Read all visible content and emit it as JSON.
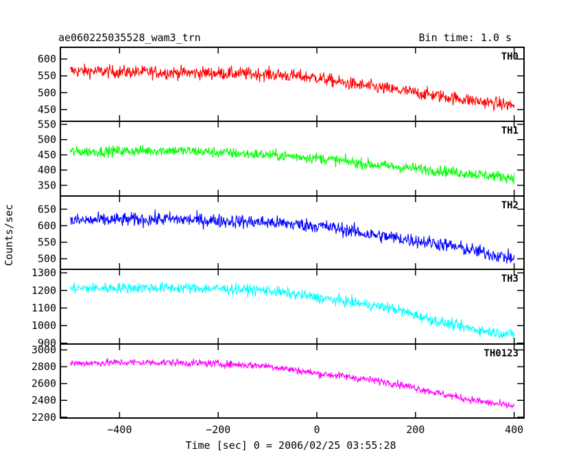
{
  "header": {
    "left_title": "ae060225035528_wam3_trn",
    "right_title": "Bin time: 1.0 s"
  },
  "chart_data": {
    "type": "line",
    "title": "ae060225035528_wam3_trn",
    "subtitle": "Bin time: 1.0 s",
    "xlabel": "Time [sec] 0 = 2006/02/25 03:55:28",
    "ylabel": "Counts/sec",
    "xlim": [
      -520,
      420
    ],
    "xticks": [
      -400,
      -200,
      0,
      200,
      400
    ],
    "xtick_labels": [
      "−400",
      "−200",
      "0",
      "200",
      "400"
    ],
    "data_x_range": [
      -500,
      400
    ],
    "bin_time_s": 1.0,
    "grid": false,
    "panels": [
      {
        "name": "TH0",
        "color": "#ff0000",
        "ylim": [
          415,
          635
        ],
        "yticks": [
          450,
          500,
          550,
          600
        ],
        "x": [
          -500,
          -400,
          -300,
          -200,
          -100,
          0,
          50,
          100,
          150,
          200,
          250,
          300,
          350,
          400
        ],
        "values": [
          565,
          562,
          560,
          558,
          555,
          545,
          530,
          520,
          510,
          500,
          490,
          480,
          470,
          462
        ],
        "noise_amplitude": 35
      },
      {
        "name": "TH1",
        "color": "#00ff00",
        "ylim": [
          315,
          560
        ],
        "yticks": [
          350,
          400,
          450,
          500,
          550
        ],
        "x": [
          -500,
          -400,
          -300,
          -200,
          -100,
          0,
          50,
          100,
          150,
          200,
          250,
          300,
          350,
          400
        ],
        "values": [
          460,
          462,
          465,
          458,
          450,
          440,
          430,
          420,
          412,
          405,
          398,
          390,
          382,
          375
        ],
        "noise_amplitude": 32
      },
      {
        "name": "TH2",
        "color": "#0000ff",
        "ylim": [
          468,
          690
        ],
        "yticks": [
          500,
          550,
          600,
          650
        ],
        "x": [
          -500,
          -400,
          -300,
          -200,
          -100,
          0,
          50,
          100,
          150,
          200,
          250,
          300,
          350,
          400
        ],
        "values": [
          615,
          618,
          620,
          615,
          610,
          600,
          590,
          575,
          565,
          555,
          545,
          530,
          515,
          500
        ],
        "noise_amplitude": 38
      },
      {
        "name": "TH3",
        "color": "#00ffff",
        "ylim": [
          895,
          1320
        ],
        "yticks": [
          900,
          1000,
          1100,
          1200,
          1300
        ],
        "x": [
          -500,
          -400,
          -300,
          -200,
          -100,
          0,
          50,
          100,
          150,
          200,
          250,
          300,
          350,
          400
        ],
        "values": [
          1210,
          1215,
          1215,
          1210,
          1200,
          1160,
          1140,
          1120,
          1100,
          1060,
          1020,
          990,
          965,
          950
        ],
        "noise_amplitude": 55
      },
      {
        "name": "TH0123",
        "color": "#ff00ff",
        "ylim": [
          2190,
          3070
        ],
        "yticks": [
          2200,
          2400,
          2600,
          2800,
          3000
        ],
        "x": [
          -500,
          -400,
          -300,
          -200,
          -100,
          0,
          50,
          100,
          150,
          200,
          250,
          300,
          350,
          400
        ],
        "values": [
          2840,
          2850,
          2850,
          2835,
          2810,
          2720,
          2690,
          2650,
          2610,
          2550,
          2480,
          2420,
          2370,
          2330
        ],
        "noise_amplitude": 80
      }
    ]
  }
}
